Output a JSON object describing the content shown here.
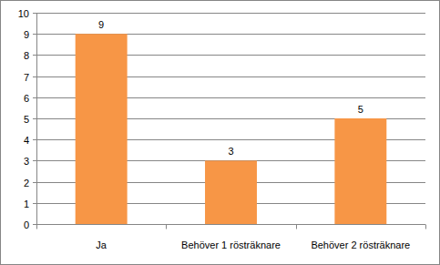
{
  "chart_data": {
    "type": "bar",
    "categories": [
      "Ja",
      "Behöver 1 rösträknare",
      "Behöver 2 rösträknare"
    ],
    "values": [
      9,
      3,
      5
    ],
    "color": "#f79646",
    "ylim": [
      0,
      10
    ],
    "yticks": [
      0,
      1,
      2,
      3,
      4,
      5,
      6,
      7,
      8,
      9,
      10
    ],
    "grid": true,
    "data_labels": true
  }
}
